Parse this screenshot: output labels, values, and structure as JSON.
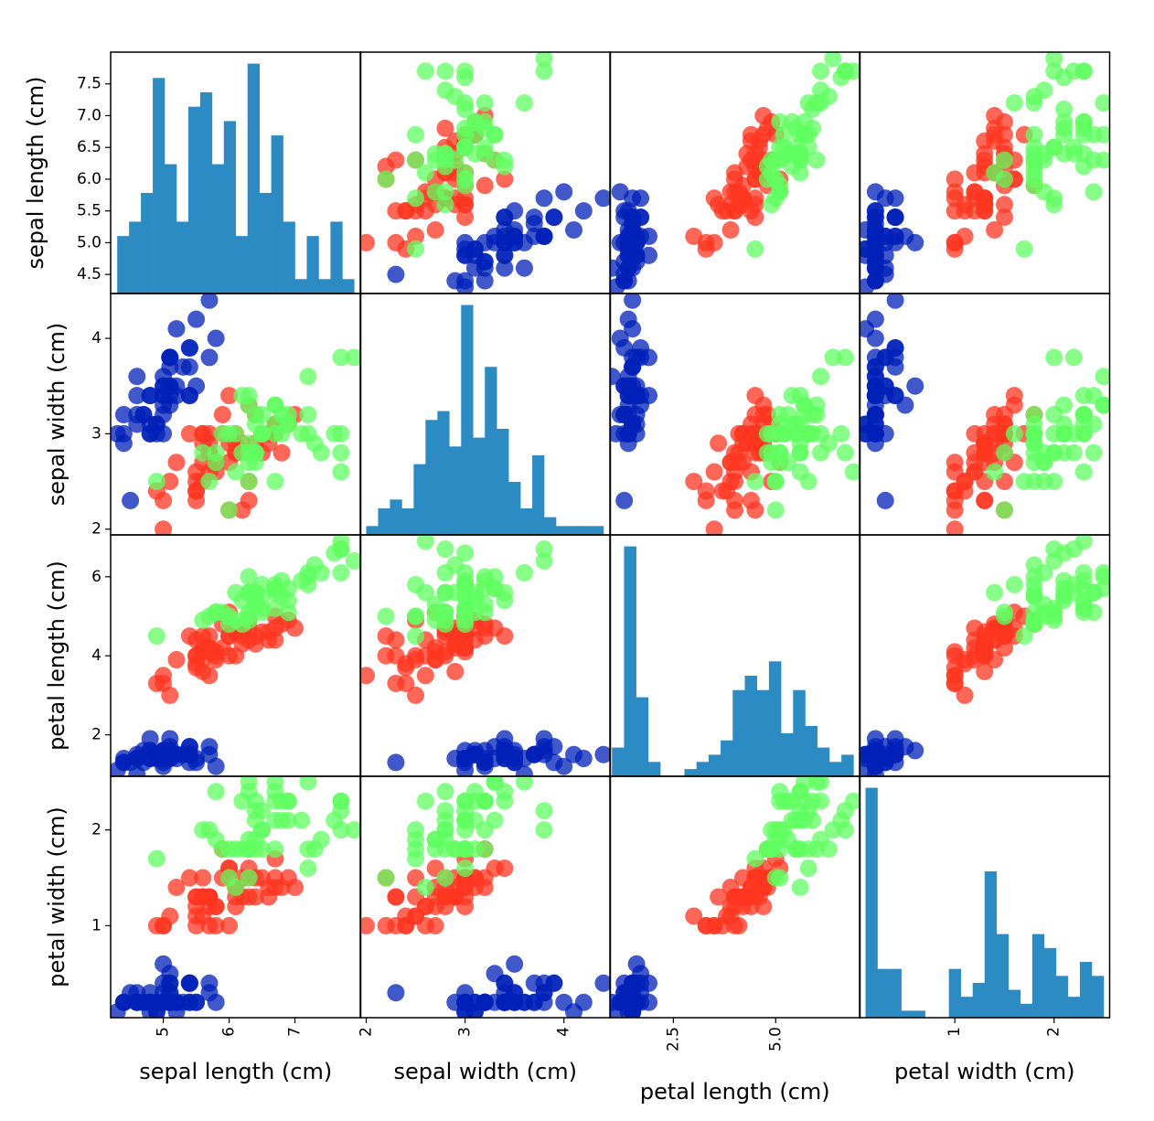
{
  "chart_data": {
    "type": "scatter_matrix",
    "variables": [
      "sepal length (cm)",
      "sepal width (cm)",
      "petal length (cm)",
      "petal width (cm)"
    ],
    "ranges": [
      [
        4.2,
        8.0
      ],
      [
        1.94,
        4.47
      ],
      [
        0.95,
        7.06
      ],
      [
        0.04,
        2.56
      ]
    ],
    "x_ticks": [
      [
        5,
        6,
        7
      ],
      [
        2,
        3,
        4
      ],
      [
        2.5,
        5.0
      ],
      [
        1,
        2
      ]
    ],
    "x_tick_labels": [
      [
        "5",
        "6",
        "7"
      ],
      [
        "2",
        "3",
        "4"
      ],
      [
        "2.5",
        "5.0"
      ],
      [
        "1",
        "2"
      ]
    ],
    "y_ticks": [
      [
        4.5,
        5.0,
        5.5,
        6.0,
        6.5,
        7.0,
        7.5
      ],
      [
        2,
        3,
        4
      ],
      [
        2,
        4,
        6
      ],
      [
        1,
        2
      ]
    ],
    "y_tick_labels": [
      [
        "4.5",
        "5.0",
        "5.5",
        "6.0",
        "6.5",
        "7.0",
        "7.5"
      ],
      [
        "2",
        "3",
        "4"
      ],
      [
        "2",
        "4",
        "6"
      ],
      [
        "1",
        "2"
      ]
    ],
    "diagonal": "histogram",
    "hist_bins": 20,
    "hist_color": "#2b8bc2",
    "grid": false,
    "series": [
      {
        "color": "#0020b8",
        "values": [
          [
            5.1,
            3.5,
            1.4,
            0.2
          ],
          [
            4.9,
            3.0,
            1.4,
            0.2
          ],
          [
            4.7,
            3.2,
            1.3,
            0.2
          ],
          [
            4.6,
            3.1,
            1.5,
            0.2
          ],
          [
            5.0,
            3.6,
            1.4,
            0.2
          ],
          [
            5.4,
            3.9,
            1.7,
            0.4
          ],
          [
            4.6,
            3.4,
            1.4,
            0.3
          ],
          [
            5.0,
            3.4,
            1.5,
            0.2
          ],
          [
            4.4,
            2.9,
            1.4,
            0.2
          ],
          [
            4.9,
            3.1,
            1.5,
            0.1
          ],
          [
            5.4,
            3.7,
            1.5,
            0.2
          ],
          [
            4.8,
            3.4,
            1.6,
            0.2
          ],
          [
            4.8,
            3.0,
            1.4,
            0.1
          ],
          [
            4.3,
            3.0,
            1.1,
            0.1
          ],
          [
            5.8,
            4.0,
            1.2,
            0.2
          ],
          [
            5.7,
            4.4,
            1.5,
            0.4
          ],
          [
            5.4,
            3.9,
            1.3,
            0.4
          ],
          [
            5.1,
            3.5,
            1.4,
            0.3
          ],
          [
            5.7,
            3.8,
            1.7,
            0.3
          ],
          [
            5.1,
            3.8,
            1.5,
            0.3
          ],
          [
            5.4,
            3.4,
            1.7,
            0.2
          ],
          [
            5.1,
            3.7,
            1.5,
            0.4
          ],
          [
            4.6,
            3.6,
            1.0,
            0.2
          ],
          [
            5.1,
            3.3,
            1.7,
            0.5
          ],
          [
            4.8,
            3.4,
            1.9,
            0.2
          ],
          [
            5.0,
            3.0,
            1.6,
            0.2
          ],
          [
            5.0,
            3.4,
            1.6,
            0.4
          ],
          [
            5.2,
            3.5,
            1.5,
            0.2
          ],
          [
            5.2,
            3.4,
            1.4,
            0.2
          ],
          [
            4.7,
            3.2,
            1.6,
            0.2
          ],
          [
            4.8,
            3.1,
            1.6,
            0.2
          ],
          [
            5.4,
            3.4,
            1.5,
            0.4
          ],
          [
            5.2,
            4.1,
            1.5,
            0.1
          ],
          [
            5.5,
            4.2,
            1.4,
            0.2
          ],
          [
            4.9,
            3.1,
            1.5,
            0.1
          ],
          [
            5.0,
            3.2,
            1.2,
            0.2
          ],
          [
            5.5,
            3.5,
            1.3,
            0.2
          ],
          [
            4.4,
            3.0,
            1.3,
            0.2
          ],
          [
            5.1,
            3.4,
            1.5,
            0.2
          ],
          [
            5.0,
            3.5,
            1.3,
            0.3
          ],
          [
            4.5,
            2.3,
            1.3,
            0.3
          ],
          [
            4.4,
            3.2,
            1.3,
            0.2
          ],
          [
            5.0,
            3.5,
            1.6,
            0.6
          ],
          [
            5.1,
            3.8,
            1.9,
            0.4
          ],
          [
            4.8,
            3.0,
            1.4,
            0.3
          ],
          [
            5.1,
            3.8,
            1.6,
            0.2
          ],
          [
            4.6,
            3.2,
            1.4,
            0.2
          ],
          [
            5.3,
            3.7,
            1.5,
            0.2
          ],
          [
            5.0,
            3.3,
            1.4,
            0.2
          ]
        ]
      },
      {
        "color": "#ff3520",
        "values": [
          [
            7.0,
            3.2,
            4.7,
            1.4
          ],
          [
            6.4,
            3.2,
            4.5,
            1.5
          ],
          [
            6.9,
            3.1,
            4.9,
            1.5
          ],
          [
            5.5,
            2.3,
            4.0,
            1.3
          ],
          [
            6.5,
            2.8,
            4.6,
            1.5
          ],
          [
            5.7,
            2.8,
            4.5,
            1.3
          ],
          [
            6.3,
            3.3,
            4.7,
            1.6
          ],
          [
            4.9,
            2.4,
            3.3,
            1.0
          ],
          [
            6.6,
            2.9,
            4.6,
            1.3
          ],
          [
            5.2,
            2.7,
            3.9,
            1.4
          ],
          [
            5.0,
            2.0,
            3.5,
            1.0
          ],
          [
            5.9,
            3.0,
            4.2,
            1.5
          ],
          [
            6.0,
            2.2,
            4.0,
            1.0
          ],
          [
            6.1,
            2.9,
            4.7,
            1.4
          ],
          [
            5.6,
            2.9,
            3.6,
            1.3
          ],
          [
            6.7,
            3.1,
            4.4,
            1.4
          ],
          [
            5.6,
            3.0,
            4.5,
            1.5
          ],
          [
            5.8,
            2.7,
            4.1,
            1.0
          ],
          [
            6.2,
            2.2,
            4.5,
            1.5
          ],
          [
            5.6,
            2.5,
            3.9,
            1.1
          ],
          [
            5.9,
            3.2,
            4.8,
            1.8
          ],
          [
            6.1,
            2.8,
            4.0,
            1.3
          ],
          [
            6.3,
            2.5,
            4.9,
            1.5
          ],
          [
            6.1,
            2.8,
            4.7,
            1.2
          ],
          [
            6.4,
            2.9,
            4.3,
            1.3
          ],
          [
            6.6,
            3.0,
            4.4,
            1.4
          ],
          [
            6.8,
            2.8,
            4.8,
            1.4
          ],
          [
            6.7,
            3.0,
            5.0,
            1.7
          ],
          [
            6.0,
            2.9,
            4.5,
            1.5
          ],
          [
            5.7,
            2.6,
            3.5,
            1.0
          ],
          [
            5.5,
            2.4,
            3.8,
            1.1
          ],
          [
            5.5,
            2.4,
            3.7,
            1.0
          ],
          [
            5.8,
            2.7,
            3.9,
            1.2
          ],
          [
            6.0,
            2.7,
            5.1,
            1.6
          ],
          [
            5.4,
            3.0,
            4.5,
            1.5
          ],
          [
            6.0,
            3.4,
            4.5,
            1.6
          ],
          [
            6.7,
            3.1,
            4.7,
            1.5
          ],
          [
            6.3,
            2.3,
            4.4,
            1.3
          ],
          [
            5.6,
            3.0,
            4.1,
            1.3
          ],
          [
            5.5,
            2.5,
            4.0,
            1.3
          ],
          [
            5.5,
            2.6,
            4.4,
            1.2
          ],
          [
            6.1,
            3.0,
            4.6,
            1.4
          ],
          [
            5.8,
            2.6,
            4.0,
            1.2
          ],
          [
            5.0,
            2.3,
            3.3,
            1.0
          ],
          [
            5.6,
            2.7,
            4.2,
            1.3
          ],
          [
            5.7,
            3.0,
            4.2,
            1.2
          ],
          [
            5.7,
            2.9,
            4.2,
            1.3
          ],
          [
            6.2,
            2.9,
            4.3,
            1.3
          ],
          [
            5.1,
            2.5,
            3.0,
            1.1
          ],
          [
            5.7,
            2.8,
            4.1,
            1.3
          ]
        ]
      },
      {
        "color": "#60ff60",
        "values": [
          [
            6.3,
            3.3,
            6.0,
            2.5
          ],
          [
            5.8,
            2.7,
            5.1,
            1.9
          ],
          [
            7.1,
            3.0,
            5.9,
            2.1
          ],
          [
            6.3,
            2.9,
            5.6,
            1.8
          ],
          [
            6.5,
            3.0,
            5.8,
            2.2
          ],
          [
            7.6,
            3.0,
            6.6,
            2.1
          ],
          [
            4.9,
            2.5,
            4.5,
            1.7
          ],
          [
            7.3,
            2.9,
            6.3,
            1.8
          ],
          [
            6.7,
            2.5,
            5.8,
            1.8
          ],
          [
            7.2,
            3.6,
            6.1,
            2.5
          ],
          [
            6.5,
            3.2,
            5.1,
            2.0
          ],
          [
            6.4,
            2.7,
            5.3,
            1.9
          ],
          [
            6.8,
            3.0,
            5.5,
            2.1
          ],
          [
            5.7,
            2.5,
            5.0,
            2.0
          ],
          [
            5.8,
            2.8,
            5.1,
            2.4
          ],
          [
            6.4,
            3.2,
            5.3,
            2.3
          ],
          [
            6.5,
            3.0,
            5.5,
            1.8
          ],
          [
            7.7,
            3.8,
            6.7,
            2.2
          ],
          [
            7.7,
            2.6,
            6.9,
            2.3
          ],
          [
            6.0,
            2.2,
            5.0,
            1.5
          ],
          [
            6.9,
            3.2,
            5.7,
            2.3
          ],
          [
            5.6,
            2.8,
            4.9,
            2.0
          ],
          [
            7.7,
            2.8,
            6.7,
            2.0
          ],
          [
            6.3,
            2.7,
            4.9,
            1.8
          ],
          [
            6.7,
            3.3,
            5.7,
            2.1
          ],
          [
            7.2,
            3.2,
            6.0,
            1.8
          ],
          [
            6.2,
            2.8,
            4.8,
            1.8
          ],
          [
            6.1,
            3.0,
            4.9,
            1.8
          ],
          [
            6.4,
            2.8,
            5.6,
            2.1
          ],
          [
            7.2,
            3.0,
            5.8,
            1.6
          ],
          [
            7.4,
            2.8,
            6.1,
            1.9
          ],
          [
            7.9,
            3.8,
            6.4,
            2.0
          ],
          [
            6.4,
            2.8,
            5.6,
            2.2
          ],
          [
            6.3,
            2.8,
            5.1,
            1.5
          ],
          [
            6.1,
            2.6,
            5.6,
            1.4
          ],
          [
            7.7,
            3.0,
            6.1,
            2.3
          ],
          [
            6.3,
            3.4,
            5.6,
            2.4
          ],
          [
            6.4,
            3.1,
            5.5,
            1.8
          ],
          [
            6.0,
            3.0,
            4.8,
            1.8
          ],
          [
            6.9,
            3.1,
            5.4,
            2.1
          ],
          [
            6.7,
            3.1,
            5.6,
            2.4
          ],
          [
            6.9,
            3.1,
            5.1,
            2.3
          ],
          [
            6.8,
            3.2,
            5.9,
            2.3
          ],
          [
            6.7,
            3.3,
            5.7,
            2.5
          ],
          [
            6.7,
            3.0,
            5.2,
            2.3
          ],
          [
            6.3,
            2.5,
            5.0,
            1.9
          ],
          [
            6.5,
            3.0,
            5.2,
            2.0
          ],
          [
            6.2,
            3.4,
            5.4,
            2.3
          ],
          [
            5.9,
            3.0,
            5.1,
            1.8
          ]
        ]
      }
    ]
  }
}
